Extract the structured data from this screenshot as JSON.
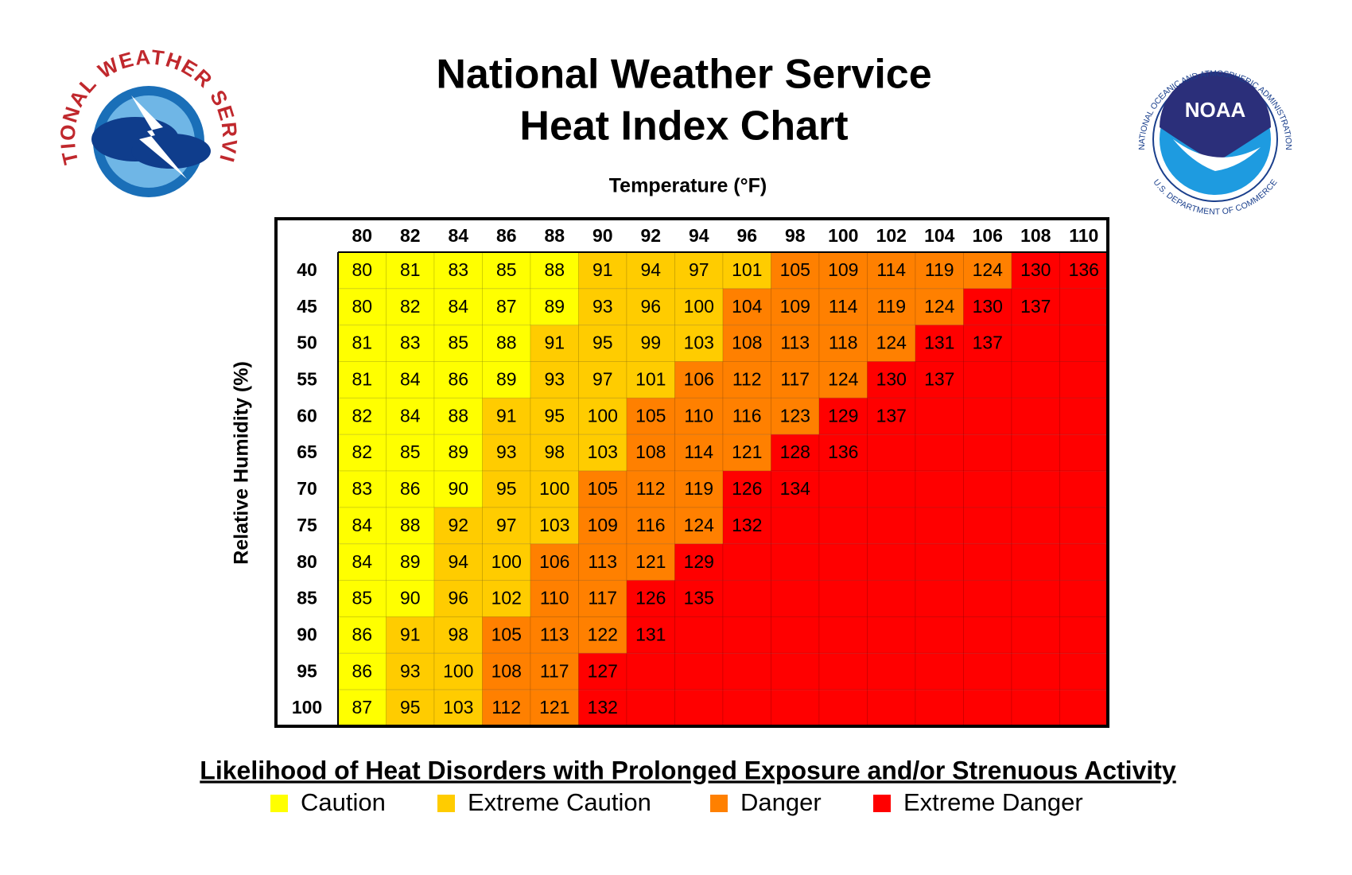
{
  "header": {
    "title_lines": [
      "National Weather Service",
      "Heat Index Chart"
    ]
  },
  "logos": {
    "nws_ring": "NATIONAL WEATHER SERVICE",
    "noaa_name": "NOAA",
    "noaa_ring": "NATIONAL OCEANIC AND ATMOSPHERIC ADMINISTRATION",
    "noaa_dept": "U.S. DEPARTMENT OF COMMERCE"
  },
  "table": {
    "column_label": "Temperature (°F)",
    "row_label": "Relative Humidity (%)",
    "columns": [
      80,
      82,
      84,
      86,
      88,
      90,
      92,
      94,
      96,
      98,
      100,
      102,
      104,
      106,
      108,
      110
    ],
    "rows": [
      {
        "rh": 40,
        "values": [
          80,
          81,
          83,
          85,
          88,
          91,
          94,
          97,
          101,
          105,
          109,
          114,
          119,
          124,
          130,
          136
        ],
        "levels": [
          0,
          0,
          0,
          0,
          0,
          1,
          1,
          1,
          1,
          2,
          2,
          2,
          2,
          2,
          3,
          3
        ]
      },
      {
        "rh": 45,
        "values": [
          80,
          82,
          84,
          87,
          89,
          93,
          96,
          100,
          104,
          109,
          114,
          119,
          124,
          130,
          137,
          null
        ],
        "levels": [
          0,
          0,
          0,
          0,
          0,
          1,
          1,
          1,
          2,
          2,
          2,
          2,
          2,
          3,
          3,
          3
        ]
      },
      {
        "rh": 50,
        "values": [
          81,
          83,
          85,
          88,
          91,
          95,
          99,
          103,
          108,
          113,
          118,
          124,
          131,
          137,
          null,
          null
        ],
        "levels": [
          0,
          0,
          0,
          0,
          1,
          1,
          1,
          1,
          2,
          2,
          2,
          2,
          3,
          3,
          3,
          3
        ]
      },
      {
        "rh": 55,
        "values": [
          81,
          84,
          86,
          89,
          93,
          97,
          101,
          106,
          112,
          117,
          124,
          130,
          137,
          null,
          null,
          null
        ],
        "levels": [
          0,
          0,
          0,
          0,
          1,
          1,
          1,
          2,
          2,
          2,
          2,
          3,
          3,
          3,
          3,
          3
        ]
      },
      {
        "rh": 60,
        "values": [
          82,
          84,
          88,
          91,
          95,
          100,
          105,
          110,
          116,
          123,
          129,
          137,
          null,
          null,
          null,
          null
        ],
        "levels": [
          0,
          0,
          0,
          1,
          1,
          1,
          2,
          2,
          2,
          2,
          3,
          3,
          3,
          3,
          3,
          3
        ]
      },
      {
        "rh": 65,
        "values": [
          82,
          85,
          89,
          93,
          98,
          103,
          108,
          114,
          121,
          128,
          136,
          null,
          null,
          null,
          null,
          null
        ],
        "levels": [
          0,
          0,
          0,
          1,
          1,
          1,
          2,
          2,
          2,
          3,
          3,
          3,
          3,
          3,
          3,
          3
        ]
      },
      {
        "rh": 70,
        "values": [
          83,
          86,
          90,
          95,
          100,
          105,
          112,
          119,
          126,
          134,
          null,
          null,
          null,
          null,
          null,
          null
        ],
        "levels": [
          0,
          0,
          0,
          1,
          1,
          2,
          2,
          2,
          3,
          3,
          3,
          3,
          3,
          3,
          3,
          3
        ]
      },
      {
        "rh": 75,
        "values": [
          84,
          88,
          92,
          97,
          103,
          109,
          116,
          124,
          132,
          null,
          null,
          null,
          null,
          null,
          null,
          null
        ],
        "levels": [
          0,
          0,
          1,
          1,
          1,
          2,
          2,
          2,
          3,
          3,
          3,
          3,
          3,
          3,
          3,
          3
        ]
      },
      {
        "rh": 80,
        "values": [
          84,
          89,
          94,
          100,
          106,
          113,
          121,
          129,
          null,
          null,
          null,
          null,
          null,
          null,
          null,
          null
        ],
        "levels": [
          0,
          0,
          1,
          1,
          2,
          2,
          2,
          3,
          3,
          3,
          3,
          3,
          3,
          3,
          3,
          3
        ]
      },
      {
        "rh": 85,
        "values": [
          85,
          90,
          96,
          102,
          110,
          117,
          126,
          135,
          null,
          null,
          null,
          null,
          null,
          null,
          null,
          null
        ],
        "levels": [
          0,
          0,
          1,
          1,
          2,
          2,
          3,
          3,
          3,
          3,
          3,
          3,
          3,
          3,
          3,
          3
        ]
      },
      {
        "rh": 90,
        "values": [
          86,
          91,
          98,
          105,
          113,
          122,
          131,
          null,
          null,
          null,
          null,
          null,
          null,
          null,
          null,
          null
        ],
        "levels": [
          0,
          1,
          1,
          2,
          2,
          2,
          3,
          3,
          3,
          3,
          3,
          3,
          3,
          3,
          3,
          3
        ]
      },
      {
        "rh": 95,
        "values": [
          86,
          93,
          100,
          108,
          117,
          127,
          null,
          null,
          null,
          null,
          null,
          null,
          null,
          null,
          null,
          null
        ],
        "levels": [
          0,
          1,
          1,
          2,
          2,
          3,
          3,
          3,
          3,
          3,
          3,
          3,
          3,
          3,
          3,
          3
        ]
      },
      {
        "rh": 100,
        "values": [
          87,
          95,
          103,
          112,
          121,
          132,
          null,
          null,
          null,
          null,
          null,
          null,
          null,
          null,
          null,
          null
        ],
        "levels": [
          0,
          1,
          1,
          2,
          2,
          3,
          3,
          3,
          3,
          3,
          3,
          3,
          3,
          3,
          3,
          3
        ]
      }
    ]
  },
  "legend": {
    "title": "Likelihood of Heat Disorders with Prolonged Exposure and/or Strenuous Activity",
    "items": [
      {
        "name": "Caution",
        "color": "#ffff00"
      },
      {
        "name": "Extreme Caution",
        "color": "#ffcc00"
      },
      {
        "name": "Danger",
        "color": "#ff8000"
      },
      {
        "name": "Extreme Danger",
        "color": "#ff0000"
      }
    ]
  }
}
